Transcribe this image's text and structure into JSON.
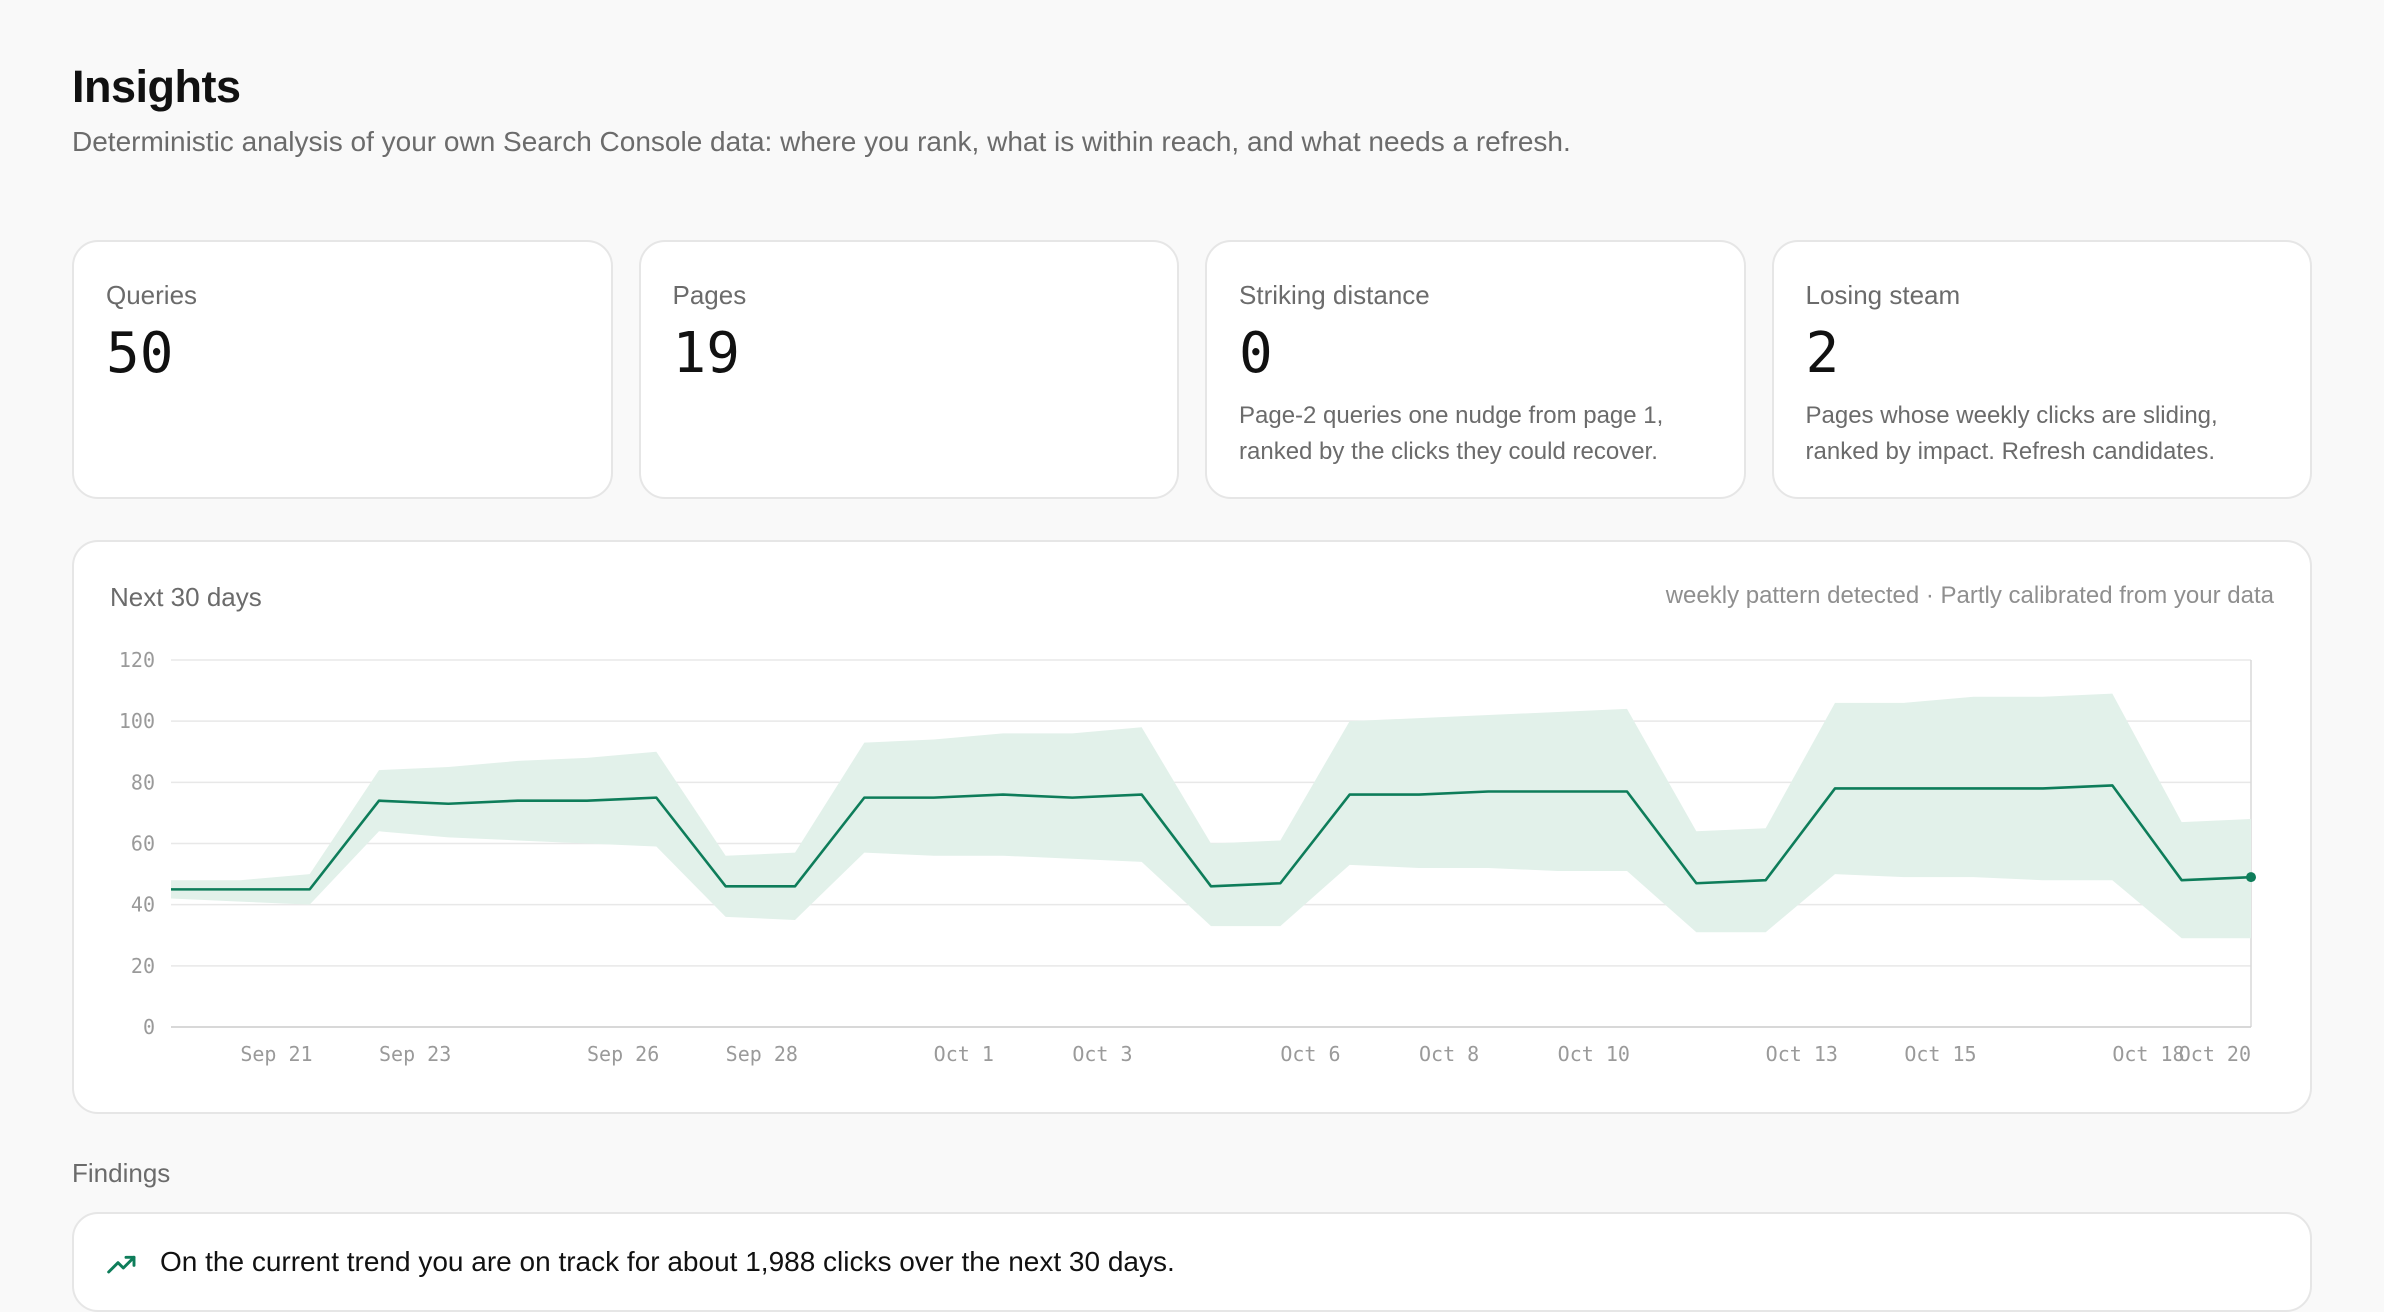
{
  "header": {
    "title": "Insights",
    "subtitle": "Deterministic analysis of your own Search Console data: where you rank, what is within reach, and what needs a refresh."
  },
  "stats": [
    {
      "label": "Queries",
      "value": "50",
      "description": ""
    },
    {
      "label": "Pages",
      "value": "19",
      "description": ""
    },
    {
      "label": "Striking distance",
      "value": "0",
      "description": "Page-2 queries one nudge from page 1, ranked by the clicks they could recover."
    },
    {
      "label": "Losing steam",
      "value": "2",
      "description": "Pages whose weekly clicks are sliding, ranked by impact. Refresh candidates."
    }
  ],
  "forecast": {
    "title": "Next 30 days",
    "note": "weekly pattern detected · Partly calibrated from your data"
  },
  "colors": {
    "line": "#0e7d5a",
    "band": "#e2f1ea",
    "grid": "#e8e8e8"
  },
  "chart_data": {
    "type": "area",
    "title": "Next 30 days",
    "x": [
      "Sep 20",
      "Sep 21",
      "Sep 22",
      "Sep 23",
      "Sep 24",
      "Sep 25",
      "Sep 26",
      "Sep 27",
      "Sep 28",
      "Sep 29",
      "Sep 30",
      "Oct 1",
      "Oct 2",
      "Oct 3",
      "Oct 4",
      "Oct 5",
      "Oct 6",
      "Oct 7",
      "Oct 8",
      "Oct 9",
      "Oct 10",
      "Oct 11",
      "Oct 12",
      "Oct 13",
      "Oct 14",
      "Oct 15",
      "Oct 16",
      "Oct 17",
      "Oct 18",
      "Oct 19",
      "Oct 20"
    ],
    "x_tick_labels": [
      "Sep 21",
      "Sep 23",
      "Sep 26",
      "Sep 28",
      "Oct 1",
      "Oct 3",
      "Oct 6",
      "Oct 8",
      "Oct 10",
      "Oct 13",
      "Oct 15",
      "Oct 18",
      "Oct 20"
    ],
    "series": [
      {
        "values": [
          45,
          45,
          45,
          74,
          73,
          74,
          74,
          75,
          46,
          46,
          75,
          75,
          76,
          75,
          76,
          46,
          47,
          76,
          76,
          77,
          77,
          77,
          47,
          48,
          78,
          78,
          78,
          78,
          79,
          48,
          49
        ]
      }
    ],
    "upper": [
      48,
      48,
      50,
      84,
      85,
      87,
      88,
      90,
      56,
      57,
      93,
      94,
      96,
      96,
      98,
      60,
      61,
      100,
      101,
      102,
      103,
      104,
      64,
      65,
      106,
      106,
      108,
      108,
      109,
      67,
      68
    ],
    "lower": [
      42,
      41,
      40,
      64,
      62,
      61,
      60,
      59,
      36,
      35,
      57,
      56,
      56,
      55,
      54,
      33,
      33,
      53,
      52,
      52,
      51,
      51,
      31,
      31,
      50,
      49,
      49,
      48,
      48,
      29,
      29
    ],
    "ylim": [
      0,
      120
    ],
    "yticks": [
      "0",
      "20",
      "40",
      "60",
      "80",
      "100",
      "120"
    ],
    "grid": true
  },
  "findings": {
    "label": "Findings",
    "items": [
      {
        "icon": "trend-up-icon",
        "text": "On the current trend you are on track for about 1,988 clicks over the next 30 days."
      }
    ]
  }
}
